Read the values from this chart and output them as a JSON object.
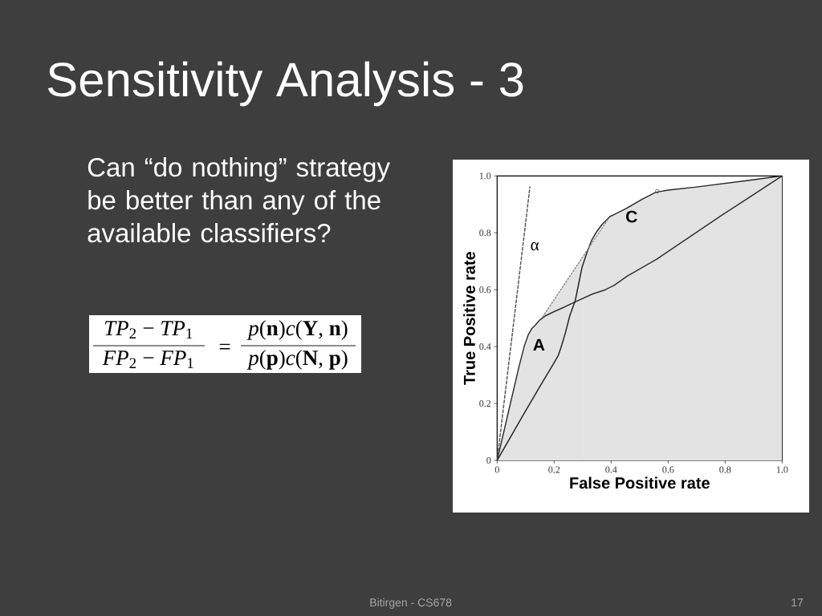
{
  "chart_data": {
    "type": "line",
    "title": "Sensitivity Analysis - 3",
    "xlabel": "False Positive rate",
    "ylabel": "True Positive rate",
    "xlim": [
      0,
      1
    ],
    "ylim": [
      0,
      1
    ],
    "xticks": [
      0,
      0.2,
      0.4,
      0.6,
      0.8,
      {
        "value": 1,
        "label": "1.0"
      }
    ],
    "yticks": [
      0,
      0.2,
      0.4,
      0.6,
      0.8,
      {
        "value": 1,
        "label": "1.0"
      }
    ],
    "series": [
      {
        "type": "area",
        "color": "#e3e3e3",
        "x": [
          0,
          0.04,
          0.08,
          0.12,
          0.15,
          0.2,
          0.25,
          0.3
        ],
        "values": [
          0,
          0.172,
          0.343,
          0.46,
          0.494,
          0.565,
          0.64,
          0.715
        ]
      },
      {
        "type": "area",
        "color": "#e3e3e3",
        "x": [
          0.3,
          0.35,
          0.39,
          0.42,
          0.48,
          0.54,
          0.62,
          0.75,
          0.9,
          1
        ],
        "values": [
          0.715,
          0.79,
          0.851,
          0.869,
          0.901,
          0.934,
          0.952,
          0.967,
          0.987,
          1
        ]
      },
      {
        "name": "A",
        "color": "#303030",
        "x": [
          0,
          0.077,
          0.095,
          0.11,
          0.122,
          0.134,
          0.15,
          0.171,
          0.2,
          0.227,
          0.274,
          0.335,
          0.38,
          0.41,
          0.457,
          0.56,
          0.786,
          1
        ],
        "values": [
          0,
          0.331,
          0.4,
          0.443,
          0.464,
          0.476,
          0.494,
          0.509,
          0.523,
          0.535,
          0.557,
          0.585,
          0.6,
          0.615,
          0.648,
          0.707,
          0.86,
          1
        ]
      },
      {
        "name": "C",
        "color": "#262626",
        "x": [
          0,
          0.087,
          0.15,
          0.198,
          0.215,
          0.227,
          0.24,
          0.255,
          0.274,
          0.298,
          0.315,
          0.331,
          0.35,
          0.368,
          0.396,
          0.452,
          0.509,
          0.556,
          0.6,
          0.7,
          0.88,
          1
        ],
        "values": [
          0,
          0.152,
          0.26,
          0.34,
          0.37,
          0.406,
          0.45,
          0.509,
          0.561,
          0.679,
          0.73,
          0.772,
          0.805,
          0.829,
          0.857,
          0.885,
          0.918,
          0.942,
          0.95,
          0.961,
          0.984,
          1
        ]
      },
      {
        "name": "α",
        "color": "#555555",
        "line_style": "dashed",
        "x": [
          0,
          0.115
        ],
        "values": [
          0,
          0.961
        ]
      },
      {
        "color": "#8c8c8c",
        "line_style": "dotted",
        "x": [
          0.16,
          0.387
        ],
        "values": [
          0.505,
          0.845
        ]
      },
      {
        "type": "scatter",
        "color": "#404040",
        "marker": "circle",
        "x": [
          0.562
        ],
        "values": [
          0.946
        ]
      }
    ],
    "annotations": [
      "Can “do nothing” strategy be better than any of the available classifiers?",
      "*TP*$_{2}$ − *TP*$_{1}$",
      "*FP*$_{2}$ − *FP*$_{1}$",
      "=",
      "*p*(**n**)*c*(**Y**, **n**)",
      "*p*(**p**)*c*(**N**, **p**)",
      "Bitirgen - CS678",
      "17"
    ]
  }
}
